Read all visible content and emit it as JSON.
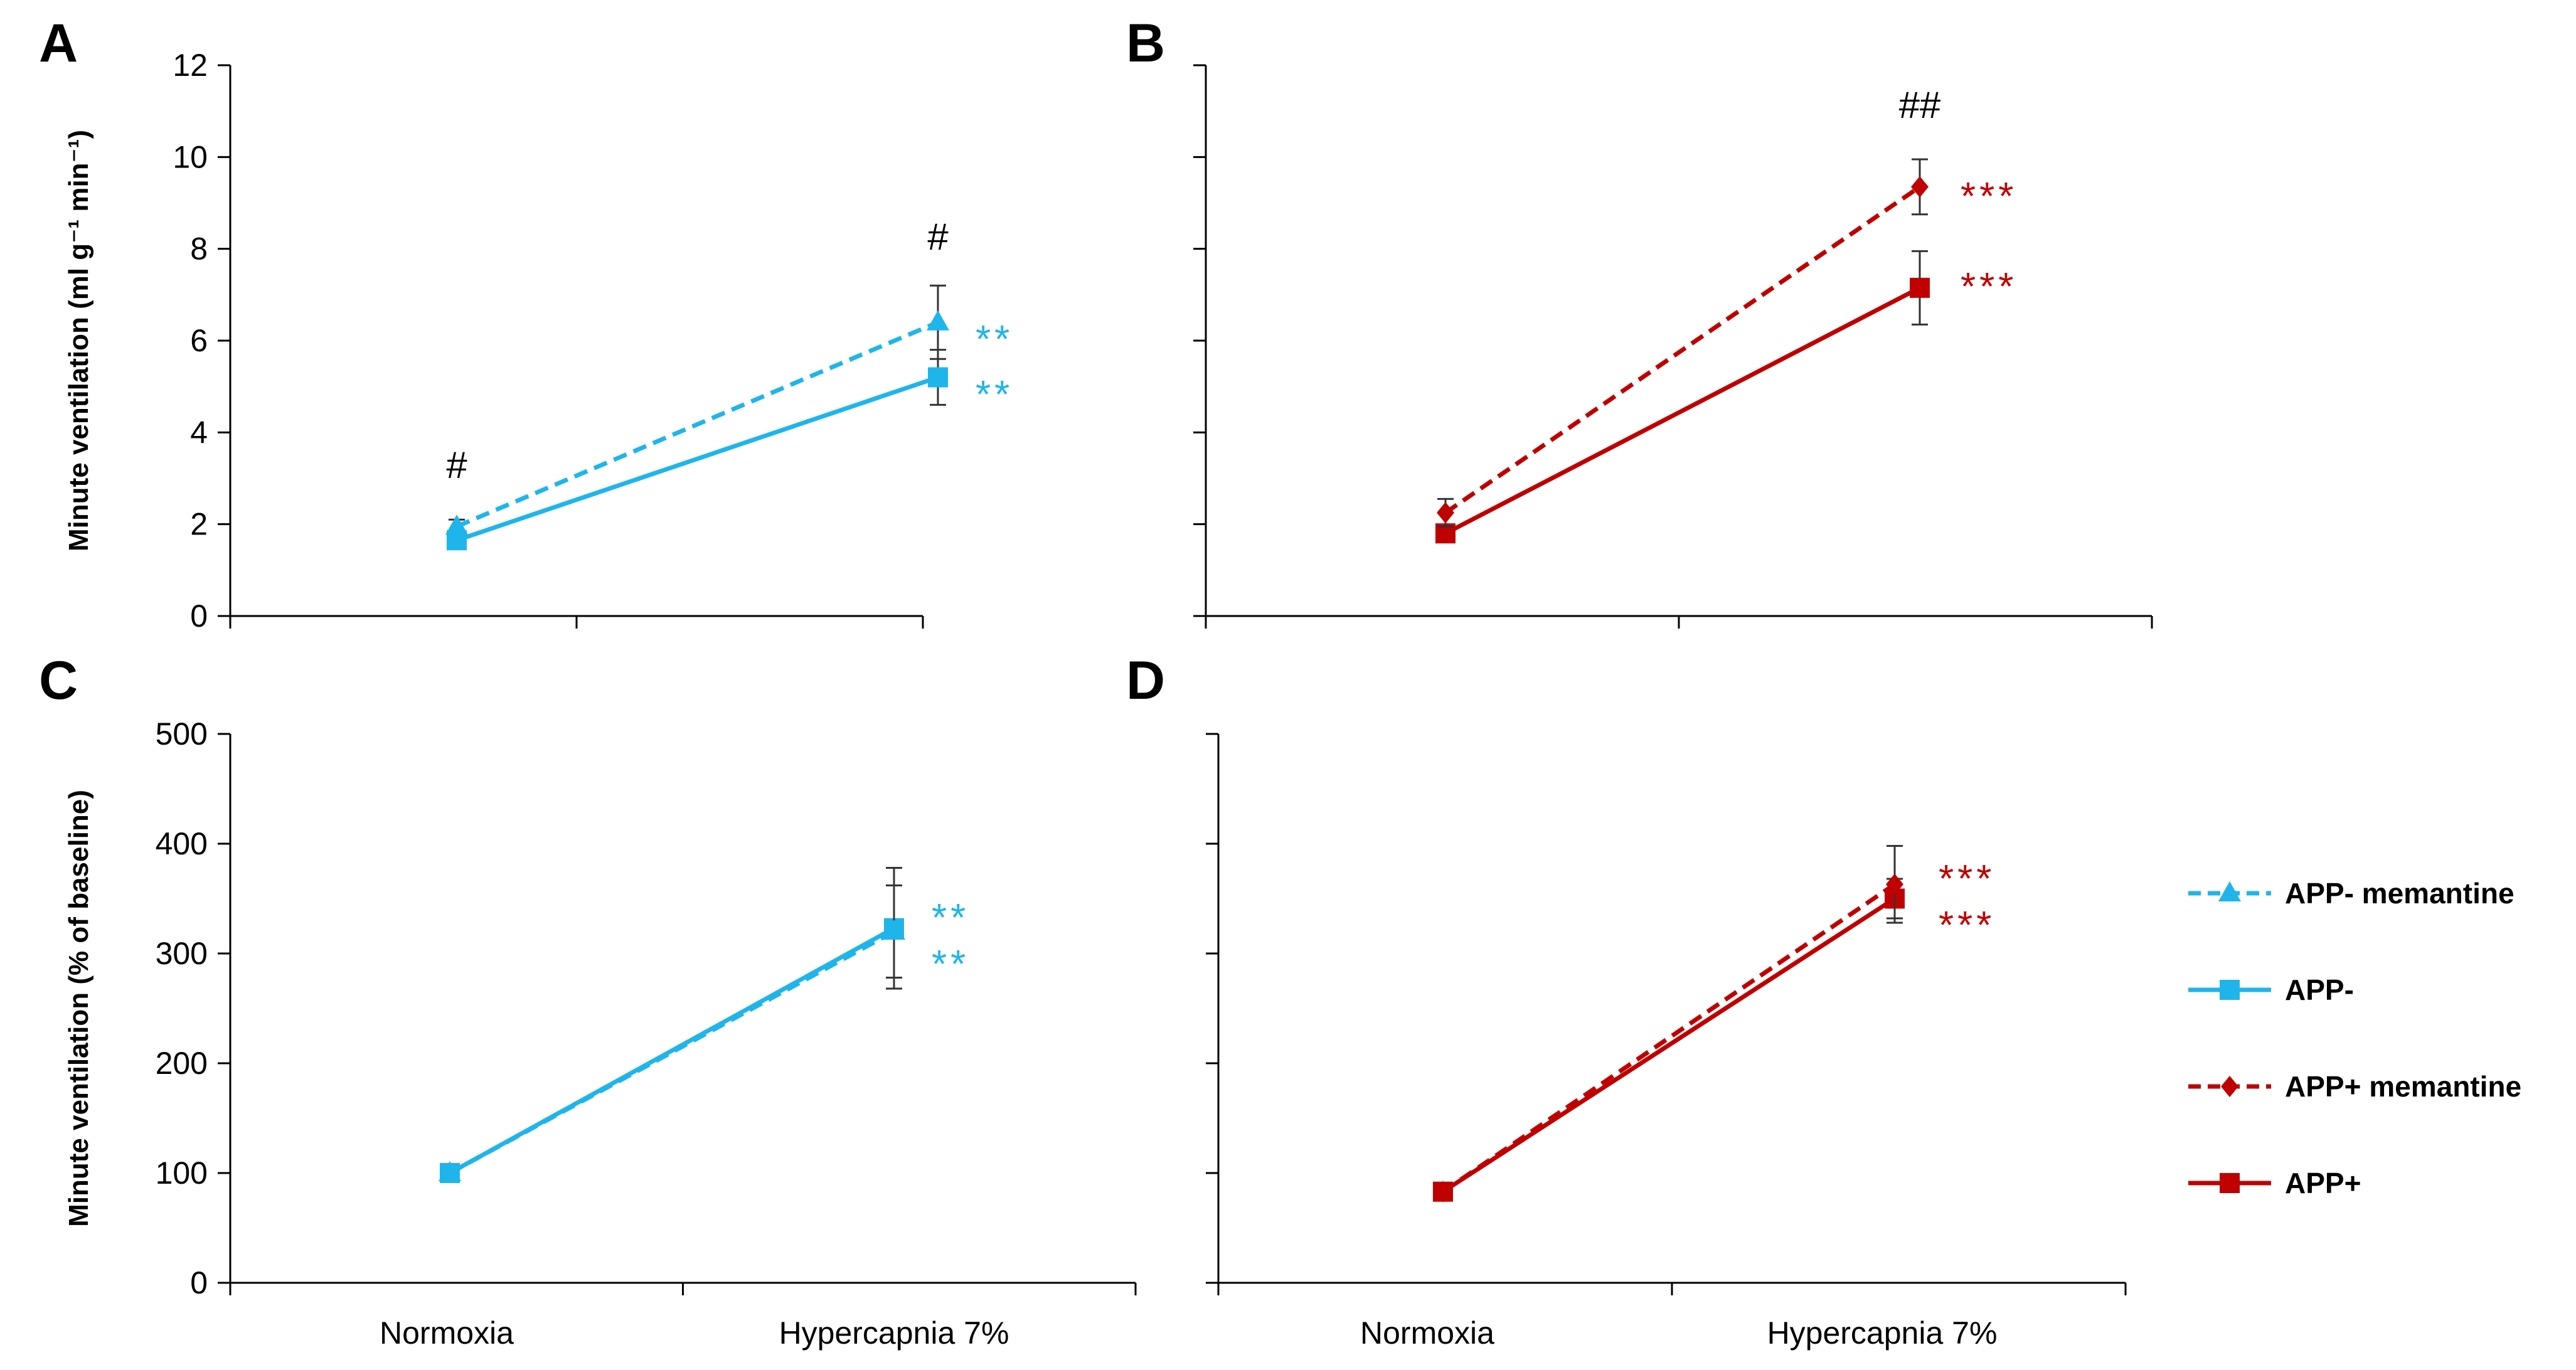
{
  "chart_data": [
    {
      "panel": "A",
      "type": "line",
      "ylabel": "Minute ventilation (ml g⁻¹ min⁻¹)",
      "ylim": [
        0,
        12
      ],
      "yticks": [
        0,
        2,
        4,
        6,
        8,
        10,
        12
      ],
      "categories": [
        "Normoxia",
        "Hypercapnia 7%"
      ],
      "series": [
        {
          "name": "APP- memantine",
          "values": [
            1.95,
            6.4
          ],
          "errors": [
            0.15,
            0.8
          ]
        },
        {
          "name": "APP-",
          "values": [
            1.65,
            5.2
          ],
          "errors": [
            0.1,
            0.6
          ]
        }
      ],
      "annotations": [
        {
          "text": "#",
          "category": "Normoxia"
        },
        {
          "text": "#",
          "category": "Hypercapnia 7%"
        },
        {
          "text": "**",
          "series": "APP- memantine"
        },
        {
          "text": "**",
          "series": "APP-"
        }
      ]
    },
    {
      "panel": "B",
      "type": "line",
      "ylim": [
        0,
        12
      ],
      "yticks": [
        0,
        2,
        4,
        6,
        8,
        10,
        12
      ],
      "categories": [
        "Normoxia",
        "Hypercapnia 7%"
      ],
      "series": [
        {
          "name": "APP+ memantine",
          "values": [
            2.25,
            9.35
          ],
          "errors": [
            0.3,
            0.6
          ]
        },
        {
          "name": "APP+",
          "values": [
            1.8,
            7.15
          ],
          "errors": [
            0.1,
            0.8
          ]
        }
      ],
      "annotations": [
        {
          "text": "##",
          "category": "Hypercapnia 7%"
        },
        {
          "text": "***",
          "series": "APP+ memantine"
        },
        {
          "text": "***",
          "series": "APP+"
        }
      ]
    },
    {
      "panel": "C",
      "type": "line",
      "ylabel": "Minute ventilation (% of baseline)",
      "ylim": [
        0,
        500
      ],
      "yticks": [
        0,
        100,
        200,
        300,
        400,
        500
      ],
      "categories": [
        "Normoxia",
        "Hypercapnia 7%"
      ],
      "series": [
        {
          "name": "APP- memantine",
          "values": [
            100,
            320
          ],
          "errors": [
            0,
            42
          ]
        },
        {
          "name": "APP-",
          "values": [
            100,
            323
          ],
          "errors": [
            0,
            55
          ]
        }
      ],
      "annotations": [
        {
          "text": "**",
          "series": "APP- memantine"
        },
        {
          "text": "**",
          "series": "APP-"
        }
      ]
    },
    {
      "panel": "D",
      "type": "line",
      "ylim": [
        0,
        500
      ],
      "yticks": [
        0,
        100,
        200,
        300,
        400,
        500
      ],
      "categories": [
        "Normoxia",
        "Hypercapnia 7%"
      ],
      "series": [
        {
          "name": "APP+ memantine",
          "values": [
            83,
            363
          ],
          "errors": [
            0,
            35
          ]
        },
        {
          "name": "APP+",
          "values": [
            83,
            350
          ],
          "errors": [
            0,
            18
          ]
        }
      ],
      "annotations": [
        {
          "text": "***",
          "series": "APP+ memantine"
        },
        {
          "text": "***",
          "series": "APP+"
        }
      ]
    }
  ],
  "legend": {
    "position": "right",
    "entries": [
      {
        "name": "APP- memantine",
        "color": "#1FB5EA",
        "dash": true,
        "marker": "triangle"
      },
      {
        "name": "APP-",
        "color": "#1FB5EA",
        "dash": false,
        "marker": "square"
      },
      {
        "name": "APP+ memantine",
        "color": "#C00000",
        "dash": true,
        "marker": "diamond"
      },
      {
        "name": "APP+",
        "color": "#C00000",
        "dash": false,
        "marker": "square"
      }
    ]
  }
}
